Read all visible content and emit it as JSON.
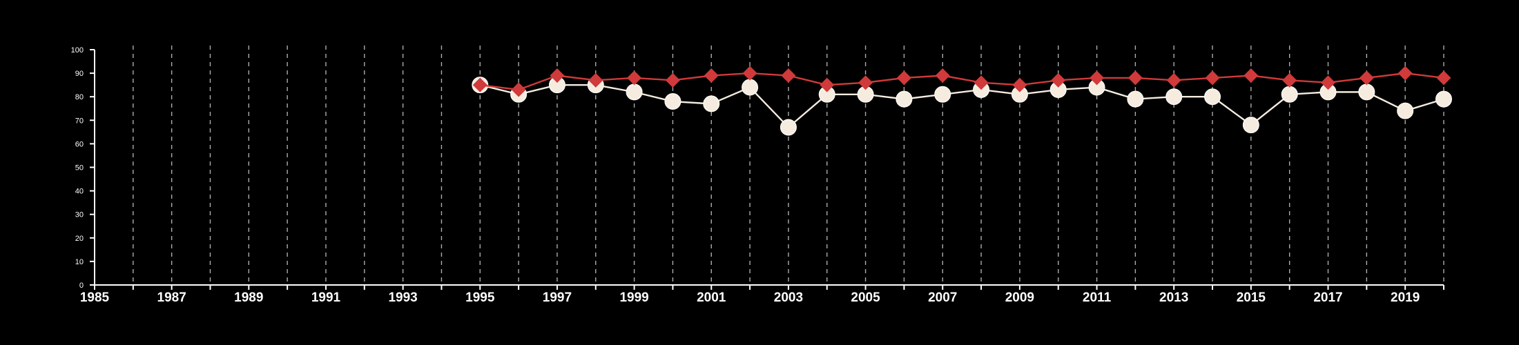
{
  "chart_data": {
    "type": "line",
    "title": "",
    "xlabel": "",
    "ylabel": "",
    "xlim": [
      1985,
      2020
    ],
    "ylim": [
      0,
      100
    ],
    "x_ticks": [
      "1985",
      "1987",
      "1989",
      "1991",
      "1993",
      "1995",
      "1997",
      "1999",
      "2001",
      "2003",
      "2005",
      "2007",
      "2009",
      "2011",
      "2013",
      "2015",
      "2017",
      "2019"
    ],
    "y_ticks": [
      "0",
      "10",
      "20",
      "30",
      "40",
      "50",
      "60",
      "70",
      "80",
      "90",
      "100"
    ],
    "grid": "vertical dashed lines at each year",
    "legend": "none",
    "series": [
      {
        "color": "#d03a3a",
        "marker": "diamond",
        "points": [
          [
            1995,
            85
          ],
          [
            1996,
            83
          ],
          [
            1997,
            89
          ],
          [
            1998,
            87
          ],
          [
            1999,
            88
          ],
          [
            2000,
            87
          ],
          [
            2001,
            89
          ],
          [
            2002,
            90
          ],
          [
            2003,
            89
          ],
          [
            2004,
            85
          ],
          [
            2005,
            86
          ],
          [
            2006,
            88
          ],
          [
            2007,
            89
          ],
          [
            2008,
            86
          ],
          [
            2009,
            85
          ],
          [
            2010,
            87
          ],
          [
            2011,
            88
          ],
          [
            2012,
            88
          ],
          [
            2013,
            87
          ],
          [
            2014,
            88
          ],
          [
            2015,
            89
          ],
          [
            2016,
            87
          ],
          [
            2017,
            86
          ],
          [
            2018,
            88
          ],
          [
            2019,
            90
          ],
          [
            2020,
            88
          ]
        ]
      },
      {
        "color": "#f5ecdf",
        "marker": "circle",
        "points": [
          [
            1995,
            85
          ],
          [
            1996,
            81
          ],
          [
            1997,
            85
          ],
          [
            1998,
            85
          ],
          [
            1999,
            82
          ],
          [
            2000,
            78
          ],
          [
            2001,
            77
          ],
          [
            2002,
            84
          ],
          [
            2003,
            67
          ],
          [
            2004,
            81
          ],
          [
            2005,
            81
          ],
          [
            2006,
            79
          ],
          [
            2007,
            81
          ],
          [
            2008,
            83
          ],
          [
            2009,
            81
          ],
          [
            2010,
            83
          ],
          [
            2011,
            84
          ],
          [
            2012,
            79
          ],
          [
            2013,
            80
          ],
          [
            2014,
            80
          ],
          [
            2015,
            68
          ],
          [
            2016,
            81
          ],
          [
            2017,
            82
          ],
          [
            2018,
            82
          ],
          [
            2019,
            74
          ],
          [
            2020,
            79
          ]
        ]
      }
    ]
  }
}
